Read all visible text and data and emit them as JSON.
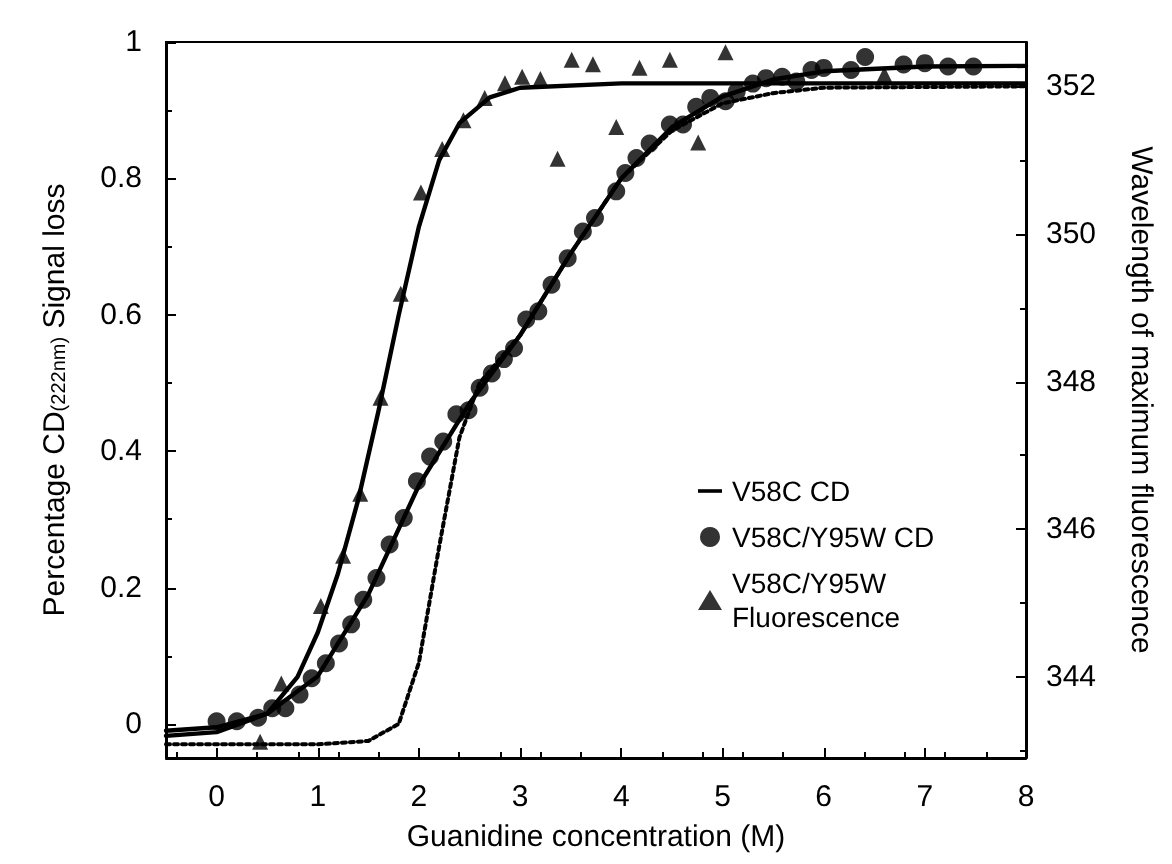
{
  "chart_data": {
    "type": "line",
    "xlabel": "Guanidine concentration (M)",
    "ylabel": "Percentage CD$_{(222nm)}$ Signal loss",
    "y2label": "Wavelength of maximum fluorescence",
    "xlim": [
      -0.5,
      8
    ],
    "xticks": [
      0,
      1,
      2,
      3,
      4,
      5,
      6,
      7,
      8
    ],
    "ylim": [
      -0.05,
      1
    ],
    "yticks": [
      0,
      0.2,
      0.4,
      0.6,
      0.8,
      1
    ],
    "y2lim": [
      342.9,
      352.6
    ],
    "y2ticks": [
      344,
      346,
      348,
      350,
      352
    ],
    "grid": false,
    "legend": "bottom right",
    "series": [
      {
        "name": "V58C CD",
        "type": "line",
        "color": "#000000",
        "line_style": "dotted",
        "marker": "none",
        "x": [
          -0.5,
          1,
          1.5,
          1.8,
          2,
          2.2,
          2.4,
          2.6,
          3,
          3.5,
          4,
          4.5,
          5,
          5.5,
          6,
          8
        ],
        "values": [
          -0.03,
          -0.03,
          -0.025,
          0.0,
          0.09,
          0.26,
          0.42,
          0.5,
          0.57,
          0.69,
          0.8,
          0.87,
          0.91,
          0.925,
          0.933,
          0.935
        ]
      },
      {
        "name": "V58C/Y95W CD",
        "type": "scatter",
        "color": "#000000",
        "marker": "circle",
        "x": [
          0,
          0.2,
          0.41,
          0.55,
          0.68,
          0.82,
          0.94,
          1.08,
          1.21,
          1.33,
          1.45,
          1.58,
          1.71,
          1.85,
          1.98,
          2.11,
          2.24,
          2.37,
          2.49,
          2.6,
          2.72,
          2.84,
          2.94,
          3.06,
          3.18,
          3.31,
          3.47,
          3.62,
          3.74,
          3.95,
          4.04,
          4.15,
          4.28,
          4.48,
          4.61,
          4.74,
          4.88,
          5.03,
          5.14,
          5.3,
          5.43,
          5.59,
          5.73,
          5.88,
          6.0,
          6.27,
          6.41,
          6.79,
          7.0,
          7.23,
          7.48
        ],
        "values": [
          0.004,
          0.004,
          0.009,
          0.023,
          0.023,
          0.043,
          0.067,
          0.089,
          0.118,
          0.146,
          0.182,
          0.214,
          0.263,
          0.302,
          0.356,
          0.392,
          0.414,
          0.454,
          0.46,
          0.493,
          0.514,
          0.535,
          0.551,
          0.593,
          0.605,
          0.644,
          0.683,
          0.722,
          0.742,
          0.781,
          0.808,
          0.83,
          0.851,
          0.879,
          0.879,
          0.905,
          0.918,
          0.913,
          0.927,
          0.939,
          0.947,
          0.949,
          0.942,
          0.959,
          0.962,
          0.959,
          0.978,
          0.967,
          0.969,
          0.964,
          0.964
        ]
      },
      {
        "type": "line",
        "color": "#000000",
        "line_style": "solid",
        "marker": "none",
        "x": [
          -0.5,
          0,
          0.5,
          1,
          1.5,
          2,
          2.5,
          3,
          3.5,
          4,
          4.5,
          5,
          5.5,
          6,
          7,
          8
        ],
        "values": [
          -0.01,
          -0.005,
          0.015,
          0.07,
          0.19,
          0.35,
          0.47,
          0.57,
          0.69,
          0.8,
          0.875,
          0.92,
          0.945,
          0.957,
          0.964,
          0.965
        ]
      },
      {
        "name": "V58C/Y95W Fluorescence",
        "type": "scatter",
        "axis": "y2",
        "color": "#000000",
        "marker": "triangle",
        "x": [
          0.43,
          0.64,
          1.03,
          1.25,
          1.42,
          1.62,
          1.82,
          2.02,
          2.23,
          2.44,
          2.65,
          2.85,
          3.02,
          3.2,
          3.37,
          3.51,
          3.72,
          3.95,
          4.18,
          4.48,
          4.76,
          5.03,
          6.6
        ],
        "values": [
          343.12,
          343.91,
          344.96,
          345.64,
          346.48,
          347.78,
          349.19,
          350.56,
          351.15,
          351.54,
          351.84,
          352.04,
          352.13,
          352.1,
          351.02,
          352.36,
          352.3,
          351.45,
          352.25,
          352.36,
          351.24,
          352.46,
          352.16
        ]
      },
      {
        "type": "line",
        "axis": "y2",
        "color": "#000000",
        "line_style": "solid",
        "marker": "none",
        "x": [
          -0.5,
          0,
          0.5,
          0.8,
          1,
          1.2,
          1.4,
          1.6,
          1.8,
          2,
          2.2,
          2.4,
          2.7,
          3,
          4,
          8
        ],
        "values": [
          343.2,
          343.25,
          343.5,
          344,
          344.6,
          345.4,
          346.4,
          347.6,
          348.9,
          350.1,
          351,
          351.5,
          351.85,
          351.98,
          352.04,
          352.04
        ]
      }
    ]
  }
}
